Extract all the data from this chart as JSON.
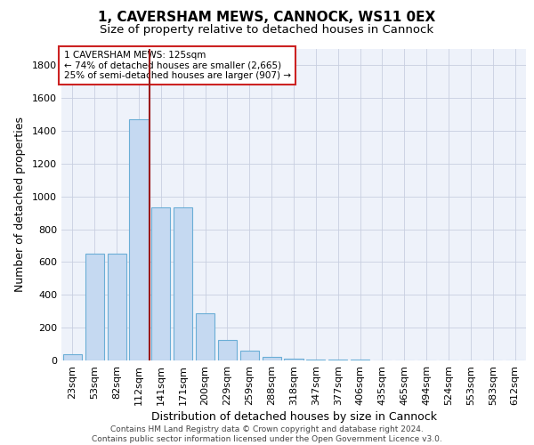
{
  "title1": "1, CAVERSHAM MEWS, CANNOCK, WS11 0EX",
  "title2": "Size of property relative to detached houses in Cannock",
  "xlabel": "Distribution of detached houses by size in Cannock",
  "ylabel": "Number of detached properties",
  "categories": [
    "23sqm",
    "53sqm",
    "82sqm",
    "112sqm",
    "141sqm",
    "171sqm",
    "200sqm",
    "229sqm",
    "259sqm",
    "288sqm",
    "318sqm",
    "347sqm",
    "377sqm",
    "406sqm",
    "435sqm",
    "465sqm",
    "494sqm",
    "524sqm",
    "553sqm",
    "583sqm",
    "612sqm"
  ],
  "values": [
    38,
    650,
    650,
    1470,
    935,
    935,
    290,
    125,
    60,
    22,
    10,
    5,
    5,
    5,
    0,
    0,
    0,
    0,
    0,
    0,
    0
  ],
  "bar_color": "#c5d9f1",
  "bar_edge_color": "#6baed6",
  "vline_x": 3.47,
  "vline_color": "#9b1b1b",
  "annotation_text": "1 CAVERSHAM MEWS: 125sqm\n← 74% of detached houses are smaller (2,665)\n25% of semi-detached houses are larger (907) →",
  "annotation_box_color": "#ffffff",
  "annotation_box_edge": "#cc2222",
  "ylim": [
    0,
    1900
  ],
  "yticks": [
    0,
    200,
    400,
    600,
    800,
    1000,
    1200,
    1400,
    1600,
    1800
  ],
  "background_color": "#eef2fa",
  "grid_color": "#c8cfe0",
  "footer": "Contains HM Land Registry data © Crown copyright and database right 2024.\nContains public sector information licensed under the Open Government Licence v3.0.",
  "title1_fontsize": 11,
  "title2_fontsize": 9.5,
  "xlabel_fontsize": 9,
  "ylabel_fontsize": 9,
  "tick_fontsize": 8,
  "annot_fontsize": 7.5,
  "footer_fontsize": 6.5
}
